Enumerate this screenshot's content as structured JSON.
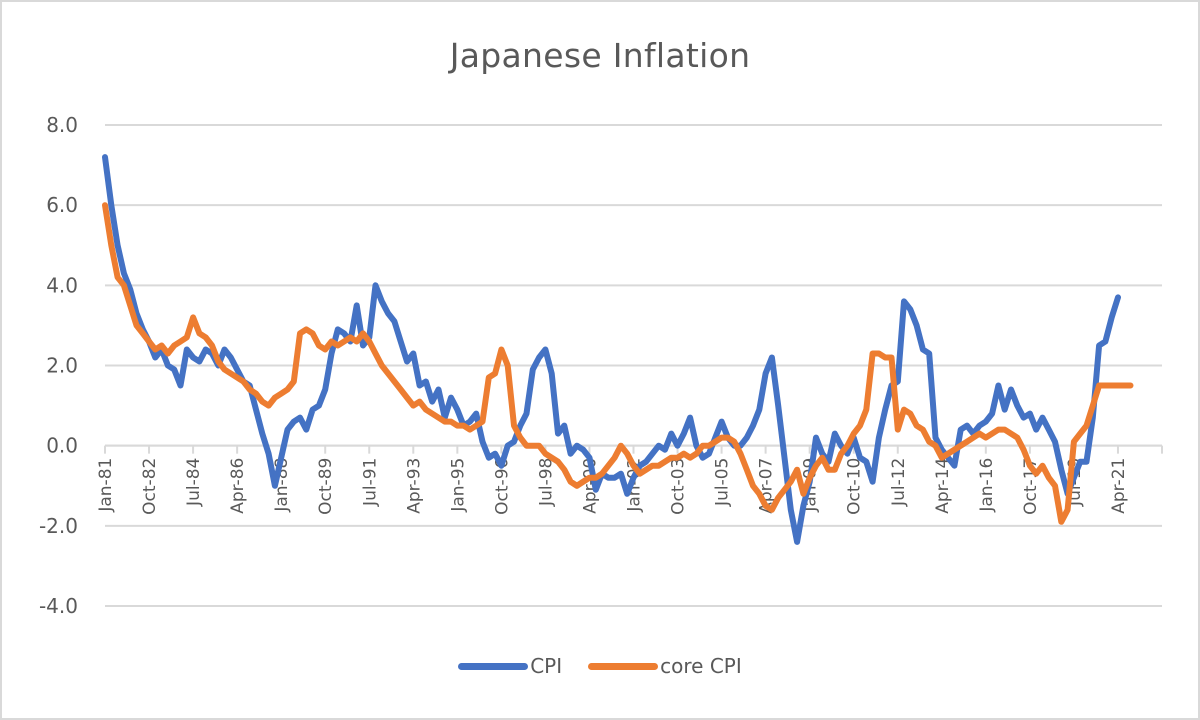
{
  "chart_data": {
    "type": "line",
    "title": "Japanese Inflation",
    "xlabel": "",
    "ylabel": "",
    "ylim": [
      -4.0,
      8.0
    ],
    "yticks": [
      "8.0",
      "6.0",
      "4.0",
      "2.0",
      "0.0",
      "-2.0",
      "-4.0"
    ],
    "ytick_values": [
      8,
      6,
      4,
      2,
      0,
      -2,
      -4
    ],
    "grid": true,
    "legend_position": "bottom",
    "x_start": "Jan-81",
    "x_step_months": 3,
    "xtick_labels": [
      "Jan-81",
      "Oct-82",
      "Jul-84",
      "Apr-86",
      "Jan-88",
      "Oct-89",
      "Jul-91",
      "Apr-93",
      "Jan-95",
      "Oct-96",
      "Jul-98",
      "Apr-00",
      "Jan-02",
      "Oct-03",
      "Jul-05",
      "Apr-07",
      "Jan-09",
      "Oct-10",
      "Jul-12",
      "Apr-14",
      "Jan-16",
      "Oct-17",
      "Jul-19",
      "Apr-21"
    ],
    "xtick_interval_months": 21,
    "series": [
      {
        "name": "CPI",
        "color": "#4472c4",
        "values": [
          7.2,
          6.0,
          5.0,
          4.3,
          3.9,
          3.3,
          2.9,
          2.6,
          2.2,
          2.4,
          2.0,
          1.9,
          1.5,
          2.4,
          2.2,
          2.1,
          2.4,
          2.3,
          2.0,
          2.4,
          2.2,
          1.9,
          1.6,
          1.5,
          0.9,
          0.3,
          -0.2,
          -1.0,
          -0.3,
          0.4,
          0.6,
          0.7,
          0.4,
          0.9,
          1.0,
          1.4,
          2.3,
          2.9,
          2.8,
          2.6,
          3.5,
          2.5,
          2.7,
          4.0,
          3.6,
          3.3,
          3.1,
          2.6,
          2.1,
          2.3,
          1.5,
          1.6,
          1.1,
          1.4,
          0.7,
          1.2,
          0.9,
          0.5,
          0.6,
          0.8,
          0.1,
          -0.3,
          -0.2,
          -0.5,
          0.0,
          0.1,
          0.5,
          0.8,
          1.9,
          2.2,
          2.4,
          1.8,
          0.3,
          0.5,
          -0.2,
          0.0,
          -0.1,
          -0.3,
          -1.1,
          -0.7,
          -0.8,
          -0.8,
          -0.7,
          -1.2,
          -0.8,
          -0.5,
          -0.4,
          -0.2,
          0.0,
          -0.1,
          0.3,
          0.0,
          0.3,
          0.7,
          0.0,
          -0.3,
          -0.2,
          0.2,
          0.6,
          0.2,
          0.0,
          0.0,
          0.2,
          0.5,
          0.9,
          1.8,
          2.2,
          1.0,
          -0.3,
          -1.6,
          -2.4,
          -1.5,
          -0.9,
          0.2,
          -0.2,
          -0.4,
          0.3,
          0.0,
          -0.2,
          0.2,
          -0.3,
          -0.4,
          -0.9,
          0.2,
          0.9,
          1.5,
          1.6,
          3.6,
          3.4,
          3.0,
          2.4,
          2.3,
          0.2,
          -0.1,
          -0.3,
          -0.5,
          0.4,
          0.5,
          0.3,
          0.5,
          0.6,
          0.8,
          1.5,
          0.9,
          1.4,
          1.0,
          0.7,
          0.8,
          0.4,
          0.7,
          0.4,
          0.1,
          -0.6,
          -1.2,
          -0.8,
          -0.4,
          -0.4,
          0.7,
          2.5,
          2.6,
          3.2,
          3.7
        ]
      },
      {
        "name": "core CPI",
        "color": "#ed7d31",
        "values": [
          6.0,
          5.0,
          4.2,
          4.0,
          3.5,
          3.0,
          2.8,
          2.6,
          2.4,
          2.5,
          2.3,
          2.5,
          2.6,
          2.7,
          3.2,
          2.8,
          2.7,
          2.5,
          2.1,
          1.9,
          1.8,
          1.7,
          1.6,
          1.4,
          1.3,
          1.1,
          1.0,
          1.2,
          1.3,
          1.4,
          1.6,
          2.8,
          2.9,
          2.8,
          2.5,
          2.4,
          2.6,
          2.5,
          2.6,
          2.7,
          2.6,
          2.8,
          2.6,
          2.3,
          2.0,
          1.8,
          1.6,
          1.4,
          1.2,
          1.0,
          1.1,
          0.9,
          0.8,
          0.7,
          0.6,
          0.6,
          0.5,
          0.5,
          0.4,
          0.5,
          0.6,
          1.7,
          1.8,
          2.4,
          2.0,
          0.5,
          0.2,
          0.0,
          0.0,
          0.0,
          -0.2,
          -0.3,
          -0.4,
          -0.6,
          -0.9,
          -1.0,
          -0.9,
          -0.8,
          -0.8,
          -0.7,
          -0.5,
          -0.3,
          0.0,
          -0.2,
          -0.5,
          -0.7,
          -0.6,
          -0.5,
          -0.5,
          -0.4,
          -0.3,
          -0.3,
          -0.2,
          -0.3,
          -0.2,
          0.0,
          0.0,
          0.1,
          0.2,
          0.2,
          0.1,
          -0.2,
          -0.6,
          -1.0,
          -1.2,
          -1.5,
          -1.6,
          -1.3,
          -1.1,
          -0.9,
          -0.6,
          -1.2,
          -0.8,
          -0.5,
          -0.3,
          -0.6,
          -0.6,
          -0.2,
          0.0,
          0.3,
          0.5,
          0.9,
          2.3,
          2.3,
          2.2,
          2.2,
          0.4,
          0.9,
          0.8,
          0.5,
          0.4,
          0.1,
          0.0,
          -0.3,
          -0.2,
          -0.1,
          0.0,
          0.1,
          0.2,
          0.3,
          0.2,
          0.3,
          0.4,
          0.4,
          0.3,
          0.2,
          -0.1,
          -0.5,
          -0.7,
          -0.5,
          -0.8,
          -1.0,
          -1.9,
          -1.6,
          0.1,
          0.3,
          0.5,
          1.0,
          1.5,
          1.5,
          1.5,
          1.5,
          1.5,
          1.5
        ]
      }
    ]
  },
  "legend": {
    "items": [
      {
        "label": "CPI",
        "color": "#4472c4"
      },
      {
        "label": "core CPI",
        "color": "#ed7d31"
      }
    ]
  }
}
